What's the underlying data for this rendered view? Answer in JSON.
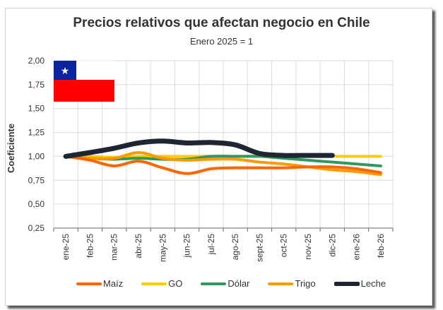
{
  "chart_data": {
    "type": "line",
    "title": "Precios relativos que afectan negocio en Chile",
    "subtitle": "Enero 2025 = 1",
    "ylabel": "Coeficiente",
    "xlabel": "",
    "ylim": [
      0.25,
      2.0
    ],
    "yticks": [
      "0,25",
      "0,50",
      "0,75",
      "1,00",
      "1,25",
      "1,50",
      "1,75",
      "2,00"
    ],
    "grid": true,
    "legend": "bottom",
    "categories": [
      "ene-25",
      "feb-25",
      "mar-25",
      "abr-25",
      "may-25",
      "jun-25",
      "jul-25",
      "ago-25",
      "sept-25",
      "oct-25",
      "nov-25",
      "dic-25",
      "ene-26",
      "feb-26"
    ],
    "series": [
      {
        "name": "Maíz",
        "color": "#ff6600",
        "values": [
          1.0,
          0.96,
          0.9,
          0.95,
          0.88,
          0.82,
          0.87,
          0.88,
          0.88,
          0.88,
          0.89,
          0.89,
          0.87,
          0.83
        ]
      },
      {
        "name": "GO",
        "color": "#ffcc00",
        "values": [
          1.0,
          1.0,
          0.99,
          1.0,
          1.0,
          1.0,
          1.0,
          1.0,
          1.0,
          1.0,
          1.0,
          1.0,
          1.0,
          1.0
        ]
      },
      {
        "name": "Dólar",
        "color": "#2e9a5e",
        "values": [
          1.0,
          0.98,
          0.97,
          0.98,
          0.97,
          0.97,
          1.0,
          1.0,
          1.0,
          0.98,
          0.96,
          0.94,
          0.92,
          0.9
        ]
      },
      {
        "name": "Trigo",
        "color": "#ff9900",
        "values": [
          1.0,
          0.98,
          0.98,
          1.04,
          0.98,
          0.96,
          0.97,
          0.97,
          0.94,
          0.92,
          0.89,
          0.86,
          0.84,
          0.81
        ]
      },
      {
        "name": "Leche",
        "color": "#1e2533",
        "values": [
          1.0,
          1.04,
          1.085,
          1.14,
          1.16,
          1.14,
          1.145,
          1.12,
          1.03,
          1.01,
          1.01,
          1.01,
          null,
          null
        ]
      }
    ]
  },
  "flag": {
    "colors": {
      "blue": "#0a239f",
      "white": "#ffffff",
      "red": "#ff0000"
    }
  }
}
